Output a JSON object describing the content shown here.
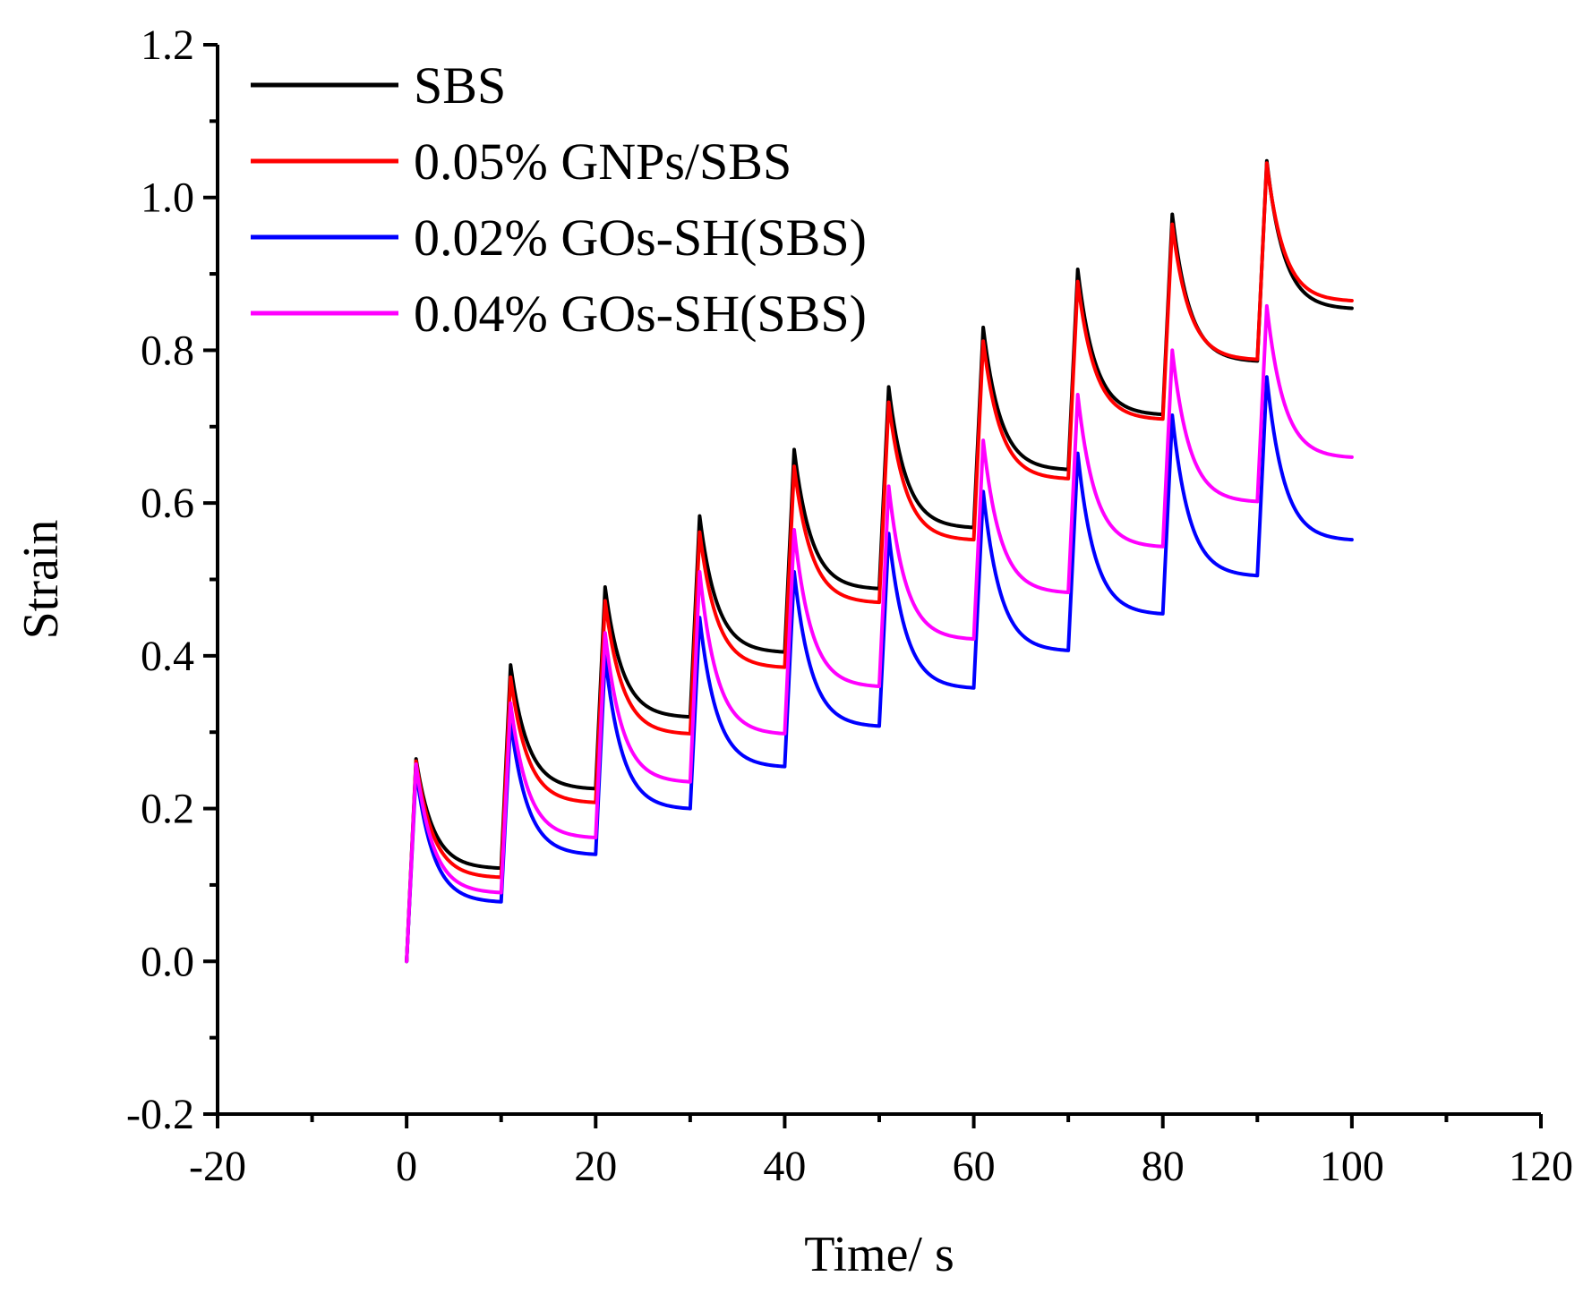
{
  "chart_data": {
    "type": "line",
    "title": "",
    "xlabel": "Time/ s",
    "ylabel": "Strain",
    "xlim": [
      -20,
      120
    ],
    "ylim": [
      -0.2,
      1.2
    ],
    "xticks": [
      -20,
      0,
      20,
      40,
      60,
      80,
      100,
      120
    ],
    "yticks": [
      -0.2,
      0.0,
      0.2,
      0.4,
      0.6,
      0.8,
      1.0,
      1.2
    ],
    "xtick_labels": [
      "-20",
      "0",
      "20",
      "40",
      "60",
      "80",
      "100",
      "120"
    ],
    "ytick_labels": [
      "-0.2",
      "0.0",
      "0.2",
      "0.4",
      "0.6",
      "0.8",
      "1.0",
      "1.2"
    ],
    "grid": false,
    "legend_position": "top-left",
    "cycle": {
      "load_time_s": 1,
      "recovery_time_s": 9,
      "cycles": 10
    },
    "series": [
      {
        "name": "SBS",
        "color": "#000000",
        "peaks": [
          0.265,
          0.388,
          0.49,
          0.583,
          0.67,
          0.752,
          0.83,
          0.906,
          0.978,
          1.048
        ],
        "valleys": [
          0.122,
          0.226,
          0.32,
          0.405,
          0.488,
          0.568,
          0.644,
          0.716,
          0.786,
          0.855
        ]
      },
      {
        "name": "0.05% GNPs/SBS",
        "color": "#ff0000",
        "peaks": [
          0.262,
          0.372,
          0.472,
          0.562,
          0.648,
          0.732,
          0.812,
          0.89,
          0.965,
          1.045
        ],
        "valleys": [
          0.11,
          0.208,
          0.298,
          0.385,
          0.47,
          0.552,
          0.632,
          0.71,
          0.788,
          0.865
        ]
      },
      {
        "name": "0.02% GOs-SH(SBS)",
        "color": "#0000ff",
        "peaks": [
          0.25,
          0.315,
          0.4,
          0.45,
          0.51,
          0.56,
          0.615,
          0.665,
          0.715,
          0.765
        ],
        "valleys": [
          0.078,
          0.14,
          0.2,
          0.255,
          0.308,
          0.358,
          0.407,
          0.455,
          0.505,
          0.552
        ]
      },
      {
        "name": "0.04% GOs-SH(SBS)",
        "color": "#ff00ff",
        "peaks": [
          0.258,
          0.338,
          0.43,
          0.51,
          0.565,
          0.622,
          0.682,
          0.742,
          0.8,
          0.858
        ],
        "valleys": [
          0.09,
          0.162,
          0.235,
          0.298,
          0.36,
          0.422,
          0.483,
          0.543,
          0.602,
          0.66
        ]
      }
    ]
  }
}
